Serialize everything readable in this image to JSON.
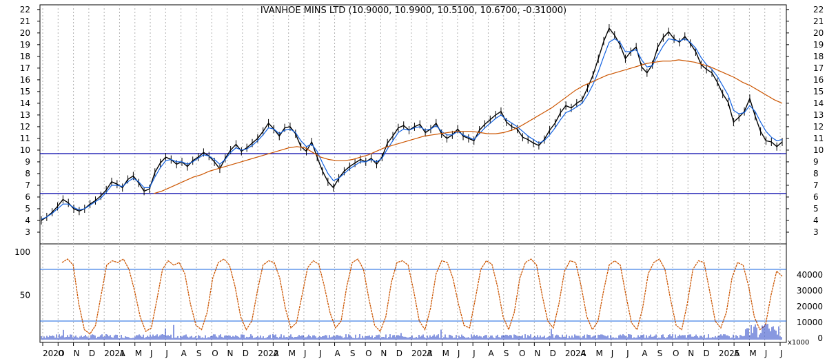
{
  "chart_data": [
    {
      "type": "line",
      "title": "IVANHOE MINS LTD (10.9000, 10.9900, 10.5100, 10.6700, -0.31000)",
      "ylim": [
        2,
        22.4
      ],
      "y_ticks": [
        3,
        4,
        5,
        6,
        7,
        8,
        9,
        10,
        11,
        12,
        13,
        14,
        15,
        16,
        17,
        18,
        19,
        20,
        21,
        22
      ],
      "x_tick_labels": [
        "2020",
        "O",
        "N",
        "D",
        "2021",
        "A",
        "M",
        "J",
        "J",
        "A",
        "S",
        "O",
        "N",
        "D",
        "2022",
        "A",
        "M",
        "J",
        "J",
        "A",
        "S",
        "O",
        "N",
        "D",
        "2023",
        "A",
        "M",
        "J",
        "J",
        "A",
        "S",
        "O",
        "N",
        "D",
        "2024",
        "A",
        "M",
        "J",
        "J",
        "A",
        "S",
        "O",
        "N",
        "D",
        "2025",
        "A",
        "M",
        "J",
        "J"
      ],
      "horizontal_lines": [
        {
          "value": 9.7,
          "color": "#0000aa"
        },
        {
          "value": 6.3,
          "color": "#0000aa"
        }
      ],
      "series": [
        {
          "color": "#000000",
          "values": [
            4.0,
            4.3,
            4.7,
            5.2,
            5.8,
            5.5,
            5.0,
            4.8,
            5.0,
            5.4,
            5.7,
            6.1,
            6.6,
            7.3,
            7.1,
            6.8,
            7.5,
            7.8,
            7.2,
            6.5,
            6.7,
            8.1,
            8.9,
            9.4,
            9.2,
            8.8,
            9.0,
            8.6,
            9.1,
            9.4,
            9.8,
            9.5,
            9.0,
            8.4,
            9.3,
            10.0,
            10.5,
            9.9,
            10.2,
            10.6,
            11.0,
            11.6,
            12.3,
            11.8,
            11.2,
            11.9,
            12.0,
            11.4,
            10.3,
            9.9,
            10.7,
            9.4,
            8.2,
            7.3,
            6.8,
            7.6,
            8.2,
            8.6,
            8.9,
            9.2,
            9.0,
            9.3,
            8.8,
            9.4,
            10.6,
            11.2,
            11.9,
            12.1,
            11.7,
            12.0,
            12.2,
            11.5,
            11.8,
            12.3,
            11.4,
            11.0,
            11.3,
            11.8,
            11.2,
            11.0,
            10.8,
            11.7,
            12.2,
            12.6,
            13.0,
            13.3,
            12.4,
            12.0,
            11.8,
            11.1,
            10.9,
            10.6,
            10.4,
            10.9,
            11.7,
            12.3,
            13.2,
            13.8,
            13.6,
            14.0,
            14.3,
            15.3,
            16.4,
            17.8,
            19.3,
            20.4,
            19.8,
            19.0,
            17.8,
            18.4,
            18.8,
            17.1,
            16.6,
            17.3,
            18.8,
            19.6,
            20.1,
            19.5,
            19.2,
            19.7,
            19.1,
            18.4,
            17.3,
            16.9,
            16.6,
            15.8,
            14.8,
            14.1,
            12.4,
            12.8,
            13.3,
            14.4,
            12.9,
            11.6,
            10.8,
            10.7,
            10.3,
            10.7
          ]
        },
        {
          "color": "#1060e0",
          "values": [
            4.1,
            4.3,
            4.6,
            5.0,
            5.4,
            5.4,
            5.1,
            4.9,
            5.0,
            5.3,
            5.6,
            5.9,
            6.4,
            7.0,
            7.0,
            6.9,
            7.3,
            7.6,
            7.3,
            6.8,
            6.8,
            7.7,
            8.5,
            9.1,
            9.2,
            9.0,
            9.0,
            8.8,
            9.0,
            9.3,
            9.6,
            9.5,
            9.2,
            8.8,
            9.2,
            9.8,
            10.2,
            10.0,
            10.1,
            10.4,
            10.8,
            11.3,
            11.9,
            11.8,
            11.4,
            11.7,
            11.8,
            11.5,
            10.8,
            10.3,
            10.5,
            9.9,
            8.9,
            8.0,
            7.4,
            7.6,
            8.0,
            8.4,
            8.7,
            9.0,
            9.0,
            9.2,
            9.0,
            9.3,
            10.1,
            10.8,
            11.5,
            11.8,
            11.7,
            11.9,
            12.0,
            11.7,
            11.8,
            12.1,
            11.6,
            11.3,
            11.3,
            11.6,
            11.3,
            11.1,
            10.9,
            11.4,
            11.9,
            12.3,
            12.7,
            13.0,
            12.6,
            12.3,
            12.0,
            11.6,
            11.2,
            10.9,
            10.6,
            10.8,
            11.3,
            11.9,
            12.6,
            13.2,
            13.4,
            13.7,
            14.0,
            14.7,
            15.6,
            16.7,
            18.0,
            19.2,
            19.5,
            19.2,
            18.4,
            18.4,
            18.6,
            17.7,
            17.1,
            17.2,
            18.1,
            18.9,
            19.5,
            19.4,
            19.3,
            19.5,
            19.2,
            18.7,
            17.9,
            17.3,
            16.9,
            16.3,
            15.5,
            14.7,
            13.4,
            13.1,
            13.2,
            13.8,
            13.3,
            12.4,
            11.6,
            11.1,
            10.8,
            10.9
          ]
        },
        {
          "color": "#cc5500",
          "values": [
            6.3,
            6.5,
            6.8,
            7.1,
            7.4,
            7.7,
            7.9,
            8.2,
            8.4,
            8.6,
            8.8,
            9.0,
            9.2,
            9.4,
            9.6,
            9.8,
            10.0,
            10.2,
            10.3,
            10.2,
            9.8,
            9.4,
            9.2,
            9.1,
            9.1,
            9.2,
            9.4,
            9.6,
            9.9,
            10.2,
            10.4,
            10.6,
            10.8,
            11.0,
            11.2,
            11.3,
            11.4,
            11.5,
            11.6,
            11.6,
            11.6,
            11.5,
            11.4,
            11.4,
            11.5,
            11.7,
            12.0,
            12.4,
            12.8,
            13.2,
            13.6,
            14.1,
            14.6,
            15.1,
            15.5,
            15.8,
            16.1,
            16.4,
            16.6,
            16.8,
            17.0,
            17.2,
            17.4,
            17.5,
            17.6,
            17.6,
            17.7,
            17.6,
            17.5,
            17.3,
            17.1,
            16.8,
            16.5,
            16.2,
            15.8,
            15.5,
            15.1,
            14.7,
            14.3,
            14.0
          ],
          "x_range_note": "starts at 2021 A"
        }
      ]
    },
    {
      "type": "line",
      "ylim": [
        0,
        100
      ],
      "y_ticks_left": [
        50,
        100
      ],
      "y_ticks_right": [
        0,
        10000,
        20000,
        30000,
        40000
      ],
      "right_axis_unit": "x1000",
      "horizontal_lines": [
        {
          "value": 80,
          "color": "#1060e0"
        },
        {
          "value": 20,
          "color": "#1060e0"
        }
      ],
      "series": [
        {
          "color": "#cc5500",
          "values": [
            88,
            92,
            85,
            40,
            10,
            5,
            15,
            50,
            85,
            90,
            88,
            92,
            80,
            55,
            25,
            8,
            12,
            45,
            80,
            90,
            85,
            88,
            75,
            40,
            15,
            10,
            30,
            70,
            88,
            92,
            85,
            60,
            25,
            10,
            20,
            55,
            85,
            90,
            88,
            70,
            35,
            12,
            18,
            50,
            82,
            90,
            86,
            60,
            30,
            12,
            20,
            60,
            88,
            92,
            80,
            45,
            15,
            8,
            25,
            65,
            88,
            90,
            85,
            55,
            20,
            10,
            35,
            75,
            90,
            88,
            70,
            40,
            15,
            12,
            45,
            80,
            90,
            86,
            60,
            25,
            10,
            30,
            70,
            88,
            92,
            85,
            50,
            20,
            12,
            40,
            78,
            90,
            88,
            60,
            25,
            10,
            20,
            55,
            85,
            90,
            85,
            50,
            18,
            10,
            35,
            75,
            88,
            92,
            80,
            45,
            15,
            10,
            40,
            80,
            90,
            88,
            55,
            20,
            12,
            30,
            70,
            88,
            85,
            60,
            25,
            10,
            15,
            50,
            78,
            72
          ]
        }
      ],
      "volume_note": "blue volume bars along bottom"
    }
  ],
  "header": {
    "title": "IVANHOE MINS LTD (10.9000, 10.9900, 10.5100, 10.6700, -0.31000)"
  },
  "axes": {
    "x_labels": [
      "2020",
      "O",
      "N",
      "D",
      "2021",
      "A",
      "M",
      "J",
      "J",
      "A",
      "S",
      "O",
      "N",
      "D",
      "2022",
      "A",
      "M",
      "J",
      "J",
      "A",
      "S",
      "O",
      "N",
      "D",
      "2023",
      "A",
      "M",
      "J",
      "J",
      "A",
      "S",
      "O",
      "N",
      "D",
      "2024",
      "A",
      "M",
      "J",
      "J",
      "A",
      "S",
      "O",
      "N",
      "D",
      "2025",
      "A",
      "M",
      "J",
      "J"
    ],
    "price_labels": [
      "3",
      "4",
      "5",
      "6",
      "7",
      "8",
      "9",
      "10",
      "11",
      "12",
      "13",
      "14",
      "15",
      "16",
      "17",
      "18",
      "19",
      "20",
      "21",
      "22"
    ],
    "osc_left_labels": [
      "50",
      "100"
    ],
    "osc_right_labels": [
      "0",
      "10000",
      "20000",
      "30000",
      "40000"
    ],
    "unit_label": "x1000"
  },
  "colors": {
    "price": "#000000",
    "ma_short": "#1060e0",
    "ma_long": "#cc5500",
    "hline": "#0000aa",
    "volume": "#1030c0",
    "grid": "#b0b0b0"
  }
}
